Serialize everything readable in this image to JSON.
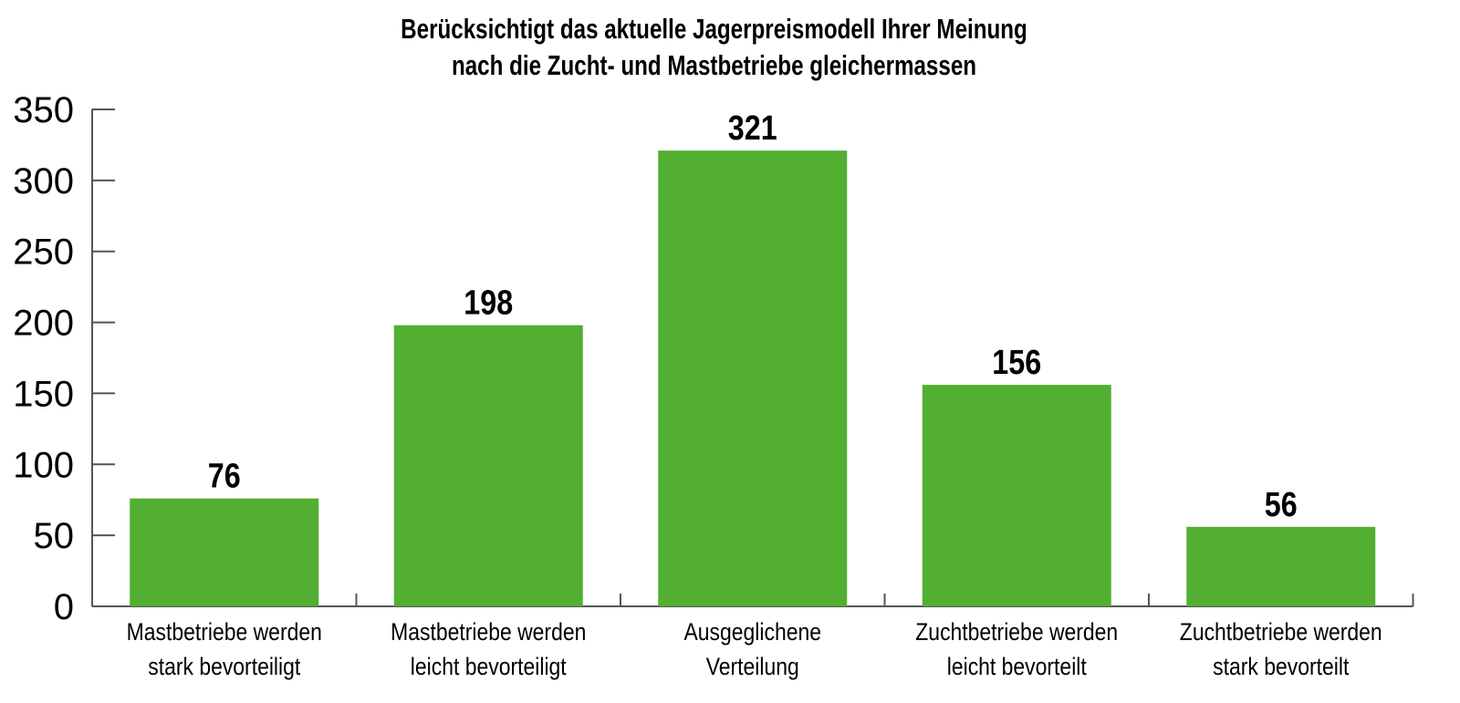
{
  "chart_data": {
    "type": "bar",
    "title": [
      "Berücksichtigt das aktuelle Jagerpreismodell Ihrer Meinung",
      "nach die Zucht- und Mastbetriebe gleichermassen"
    ],
    "categories": [
      [
        "Mastbetriebe werden",
        "stark bevorteiligt"
      ],
      [
        "Mastbetriebe werden",
        "leicht bevorteiligt"
      ],
      [
        "Ausgeglichene",
        "Verteilung"
      ],
      [
        "Zuchtbetriebe werden",
        "leicht bevorteilt"
      ],
      [
        "Zuchtbetriebe werden",
        "stark bevorteilt"
      ]
    ],
    "values": [
      76,
      198,
      321,
      156,
      56
    ],
    "xlabel": "",
    "ylabel": "",
    "ylim": [
      0,
      350
    ],
    "yticks": [
      0,
      50,
      100,
      150,
      200,
      250,
      300,
      350
    ],
    "grid": false,
    "bar_color": "#52AF32"
  }
}
